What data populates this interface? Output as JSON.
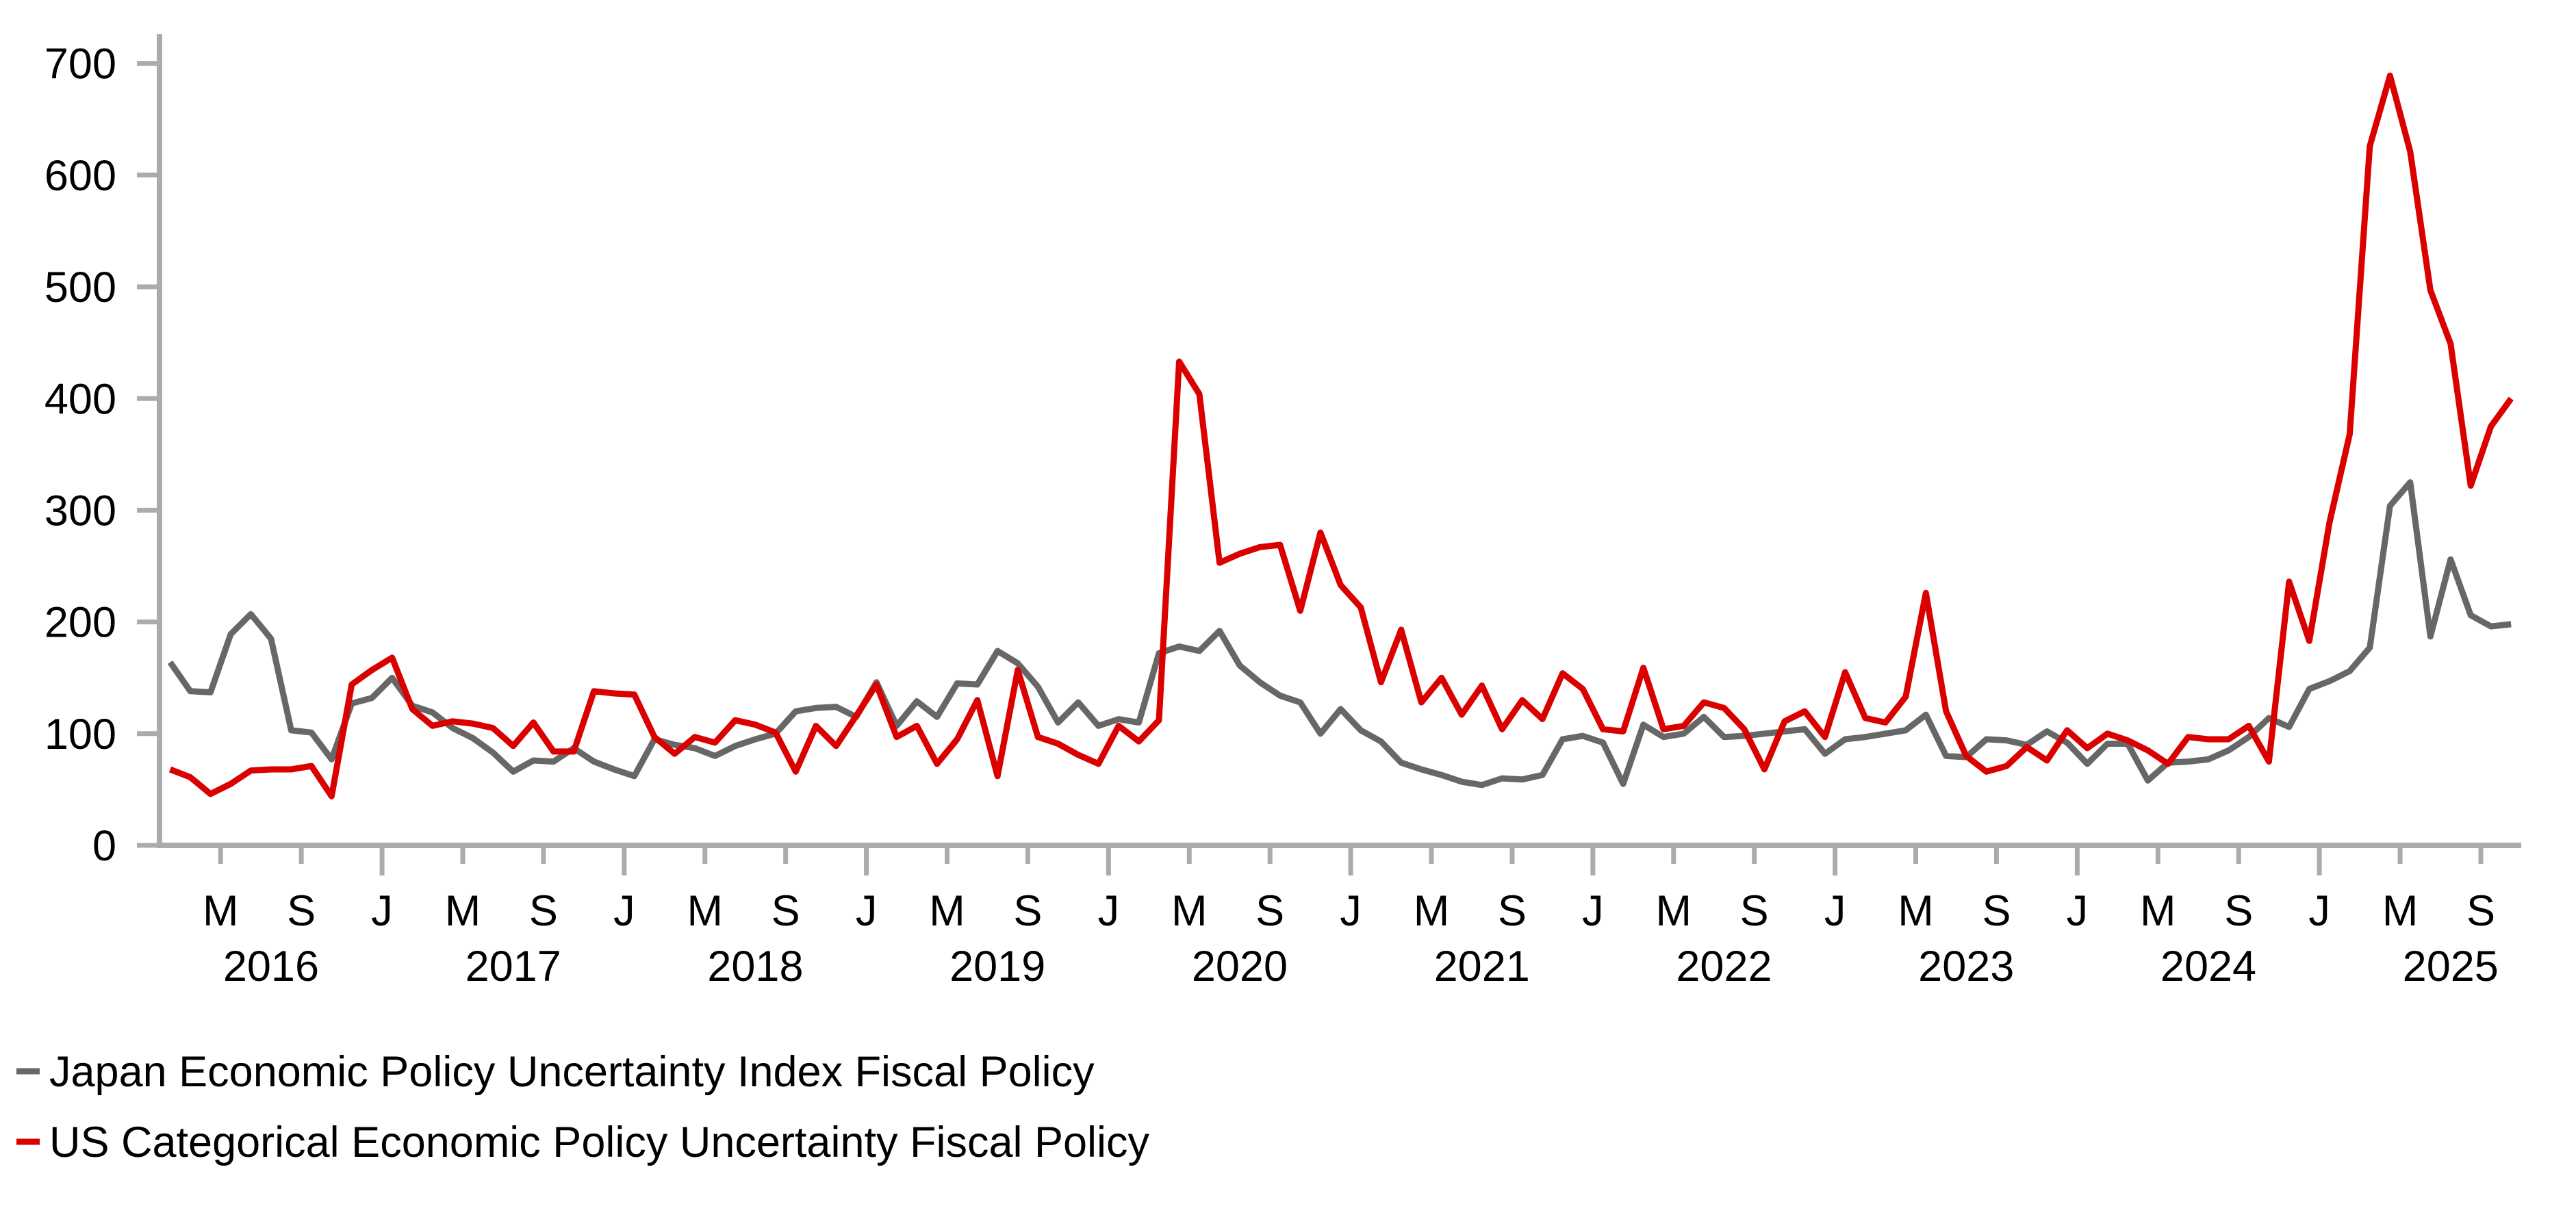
{
  "chart_data": {
    "type": "line",
    "title": "",
    "xlabel": "",
    "ylabel": "",
    "ylim": [
      0,
      700
    ],
    "y_ticks": [
      0,
      100,
      200,
      300,
      400,
      500,
      600,
      700
    ],
    "grid": false,
    "legend_position": "bottom-left",
    "axis_color": "#ababab",
    "text_color": "#000000",
    "x_unit": "month",
    "start_month": "2016-02",
    "end_month": "2025-10",
    "x_tick_letters": {
      "jan": "J",
      "may": "M",
      "sep": "S"
    },
    "x_year_labels": [
      "2016",
      "2017",
      "2018",
      "2019",
      "2020",
      "2021",
      "2022",
      "2023",
      "2024",
      "2025"
    ],
    "series": [
      {
        "name": "Japan Economic Policy Uncertainty Index Fiscal Policy",
        "color": "#676767",
        "values": [
          164,
          138,
          137,
          189,
          207,
          185,
          103,
          101,
          77,
          127,
          132,
          150,
          125,
          119,
          105,
          96,
          83,
          66,
          76,
          75,
          87,
          75,
          68,
          62,
          95,
          90,
          87,
          80,
          89,
          95,
          100,
          120,
          123,
          124,
          115,
          146,
          107,
          129,
          115,
          145,
          144,
          174,
          163,
          142,
          110,
          128,
          107,
          113,
          110,
          172,
          178,
          174,
          192,
          161,
          146,
          134,
          128,
          100,
          122,
          103,
          93,
          74,
          68,
          63,
          57,
          54,
          60,
          59,
          63,
          95,
          98,
          92,
          55,
          108,
          97,
          100,
          115,
          97,
          98,
          100,
          102,
          104,
          82,
          95,
          97,
          100,
          103,
          117,
          80,
          79,
          95,
          94,
          90,
          102,
          92,
          73,
          91,
          91,
          58,
          74,
          75,
          77,
          85,
          97,
          114,
          106,
          140,
          147,
          156,
          177,
          304,
          325,
          187,
          256,
          206,
          196,
          198
        ]
      },
      {
        "name": "US Categorical Economic Policy Uncertainty Fiscal Policy",
        "color": "#db0000",
        "values": [
          68,
          61,
          46,
          55,
          67,
          68,
          68,
          71,
          44,
          144,
          157,
          168,
          122,
          107,
          111,
          109,
          105,
          89,
          110,
          84,
          84,
          138,
          136,
          135,
          97,
          82,
          97,
          92,
          112,
          108,
          101,
          66,
          107,
          89,
          116,
          144,
          97,
          107,
          73,
          95,
          130,
          62,
          157,
          97,
          91,
          81,
          73,
          107,
          93,
          112,
          433,
          404,
          253,
          261,
          267,
          269,
          210,
          280,
          233,
          213,
          146,
          193,
          128,
          150,
          117,
          143,
          104,
          130,
          113,
          154,
          140,
          104,
          102,
          159,
          104,
          107,
          128,
          123,
          104,
          68,
          111,
          120,
          97,
          155,
          114,
          110,
          133,
          226,
          120,
          80,
          66,
          71,
          88,
          76,
          103,
          87,
          100,
          94,
          85,
          73,
          97,
          95,
          95,
          107,
          75,
          236,
          183,
          289,
          368,
          626,
          689,
          621,
          497,
          449,
          322,
          375,
          400
        ]
      }
    ]
  }
}
